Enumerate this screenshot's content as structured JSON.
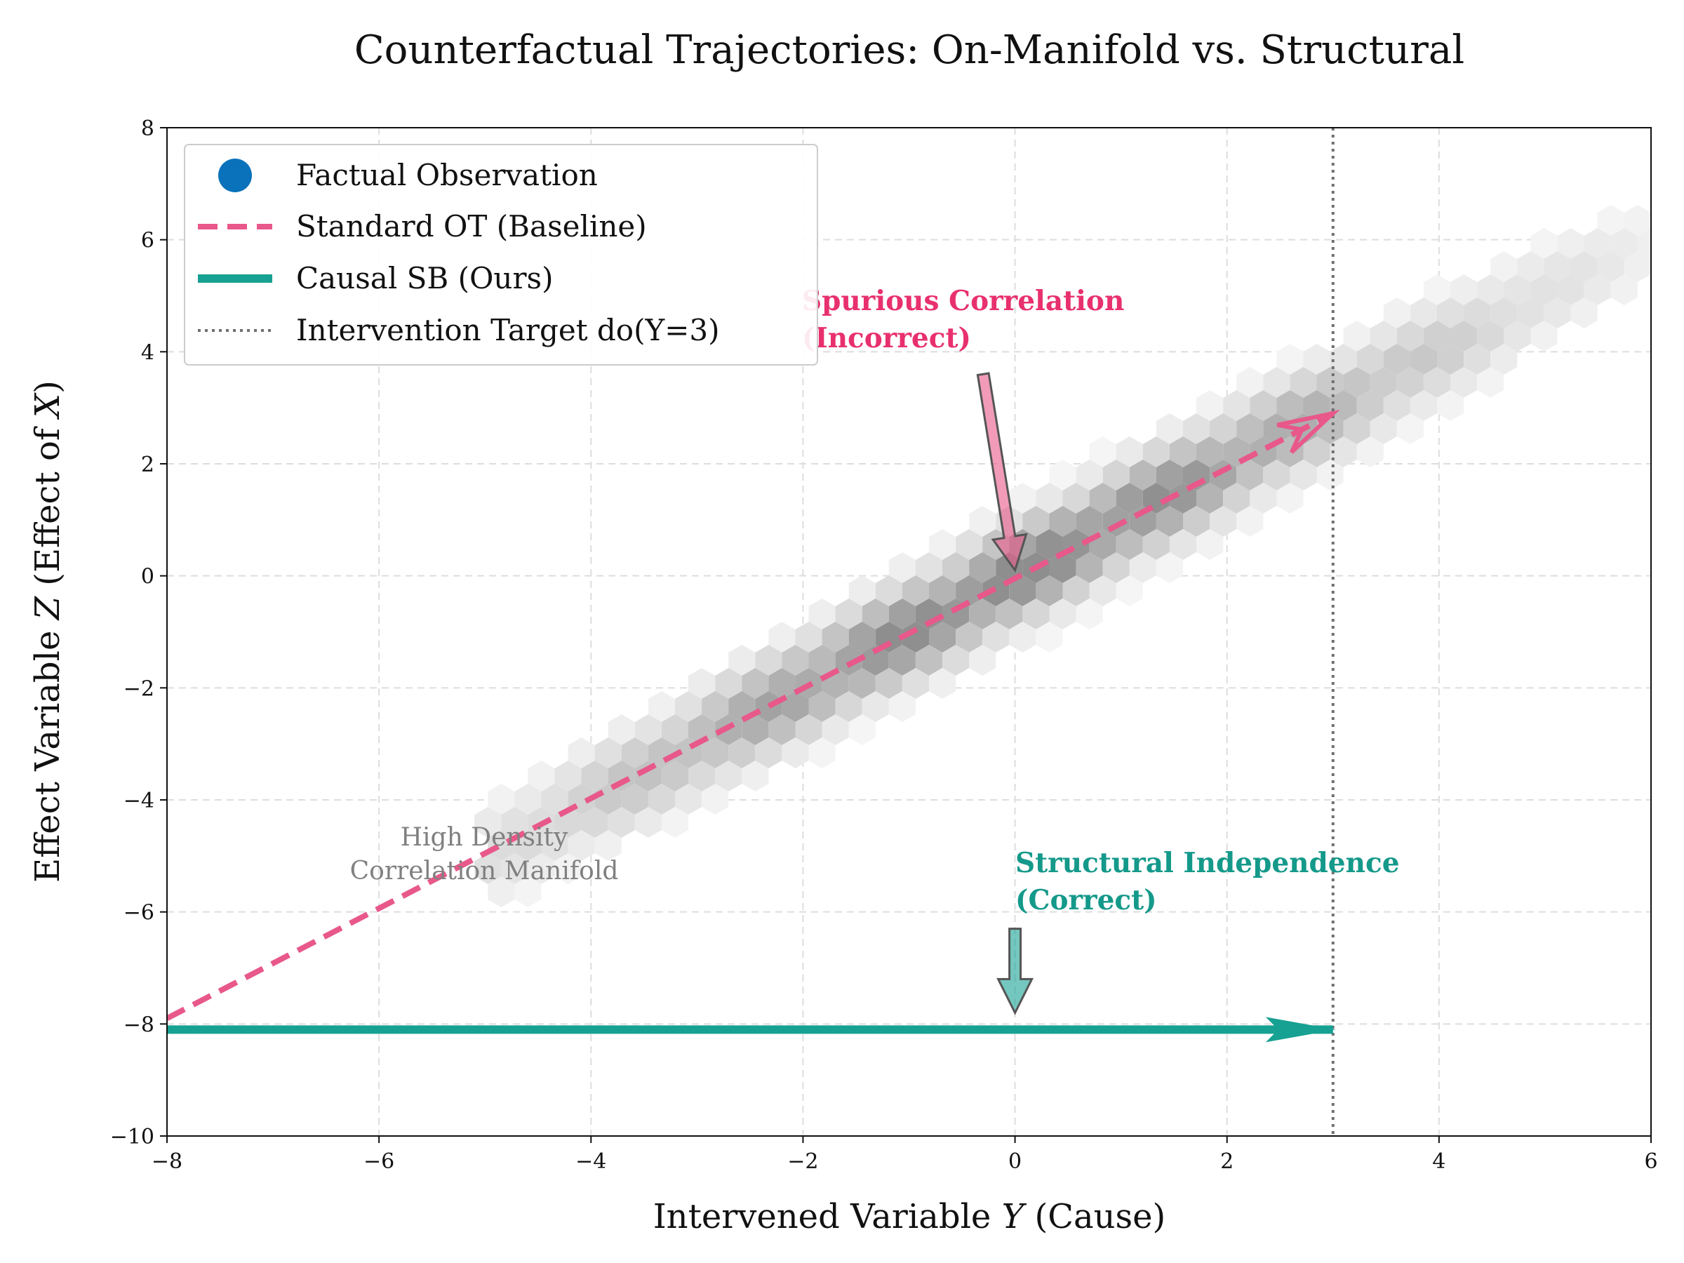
{
  "chart_data": {
    "type": "line",
    "title": "Counterfactual Trajectories: On-Manifold vs. Structural",
    "xlabel": {
      "prefix": "Intervened Variable ",
      "var": "Y",
      "suffix": " (Cause)"
    },
    "ylabel": {
      "prefix": "Effect Variable ",
      "var": "Z",
      "middle": " (Effect of ",
      "var2": "X",
      "suffix": ")"
    },
    "xlim": [
      -8,
      6
    ],
    "ylim": [
      -10,
      8
    ],
    "xticks": [
      -8,
      -6,
      -4,
      -2,
      0,
      2,
      4,
      6
    ],
    "yticks": [
      -10,
      -8,
      -6,
      -4,
      -2,
      0,
      2,
      4,
      6,
      8
    ],
    "xtick_labels": [
      "−8",
      "−6",
      "−4",
      "−2",
      "0",
      "2",
      "4",
      "6"
    ],
    "ytick_labels": [
      "−10",
      "−8",
      "−6",
      "−4",
      "−2",
      "0",
      "2",
      "4",
      "6",
      "8"
    ],
    "grid": true,
    "legend_position": "top-left",
    "legend": [
      {
        "label": "Factual Observation",
        "style": "marker"
      },
      {
        "label": "Standard OT (Baseline)",
        "style": "dashed"
      },
      {
        "label": "Causal SB (Ours)",
        "style": "solid"
      },
      {
        "label": "Intervention Target do(Y=3)",
        "style": "dotted"
      }
    ],
    "series": [
      {
        "name": "Standard OT (Baseline)",
        "x": [
          -8,
          3
        ],
        "y": [
          -7.9,
          2.9
        ],
        "color": "#e8588a",
        "style": "dashed"
      },
      {
        "name": "Causal SB (Ours)",
        "x": [
          -8,
          3
        ],
        "y": [
          -8.1,
          -8.1
        ],
        "color": "#17a192",
        "style": "solid"
      }
    ],
    "intervention_x": 3,
    "density_manifold": {
      "slope": 1.0,
      "intercept": 0.0,
      "x_range": [
        -5,
        6
      ]
    },
    "annotations": [
      {
        "id": "spurious",
        "lines": [
          "Spurious Correlation",
          "(Incorrect)"
        ],
        "color": "#e8306f",
        "arrow_from": [
          -0.3,
          3.6
        ],
        "arrow_to": [
          0.0,
          0.1
        ]
      },
      {
        "id": "structural",
        "lines": [
          "Structural Independence",
          "(Correct)"
        ],
        "color": "#14998a",
        "arrow_from": [
          0.0,
          -6.3
        ],
        "arrow_to": [
          0.0,
          -7.8
        ]
      }
    ],
    "density_note": [
      "High Density",
      "Correlation Manifold"
    ]
  },
  "colors": {
    "factual": "#0a72ba",
    "baseline": "#e8588a",
    "ours": "#17a192",
    "intervention": "#707070",
    "spurious_text": "#e8306f",
    "structural_text": "#14998a"
  }
}
